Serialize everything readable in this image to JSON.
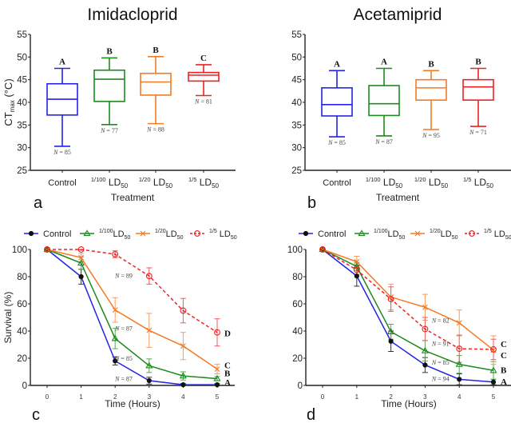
{
  "chart_data": [
    {
      "panel": "a",
      "type": "box",
      "title": "Imidacloprid",
      "xlabel": "Treatment",
      "ylabel": "CTmax (°C)",
      "ylabel_main": "CT",
      "ylabel_sub": "max",
      "ylabel_rest": " (°C)",
      "ylim": [
        25,
        55
      ],
      "yticks": [
        25,
        30,
        35,
        40,
        45,
        50,
        55
      ],
      "grid": false,
      "categories": [
        {
          "pre": "",
          "main": "Control",
          "sub": ""
        },
        {
          "pre": "1/100",
          "main": " LD",
          "sub": "50"
        },
        {
          "pre": "1/20",
          "main": " LD",
          "sub": "50"
        },
        {
          "pre": "1/5",
          "main": " LD",
          "sub": "50"
        }
      ],
      "boxes": [
        {
          "name": "Control",
          "color": "#2323e8",
          "min": 30.3,
          "q1": 37.2,
          "median": 40.7,
          "q3": 44.1,
          "max": 47.5,
          "n_label": "N = 85",
          "letter": "A"
        },
        {
          "name": "1/100 LD50",
          "color": "#1d8a1d",
          "min": 35.1,
          "q1": 40.2,
          "median": 45.1,
          "q3": 47.1,
          "max": 49.8,
          "n_label": "N = 77",
          "letter": "B"
        },
        {
          "name": "1/20 LD50",
          "color": "#f47a25",
          "min": 35.3,
          "q1": 41.6,
          "median": 44.5,
          "q3": 46.4,
          "max": 50.1,
          "n_label": "N = 88",
          "letter": "B"
        },
        {
          "name": "1/5 LD50",
          "color": "#ee2222",
          "min": 41.5,
          "q1": 44.7,
          "median": 46.0,
          "q3": 46.6,
          "max": 48.3,
          "n_label": "N = 81",
          "letter": "C"
        }
      ]
    },
    {
      "panel": "b",
      "type": "box",
      "title": "Acetamiprid",
      "xlabel": "Treatment",
      "ylabel": "",
      "ylim": [
        25,
        55
      ],
      "yticks": [
        25,
        30,
        35,
        40,
        45,
        50,
        55
      ],
      "grid": false,
      "categories": [
        {
          "pre": "",
          "main": "Control",
          "sub": ""
        },
        {
          "pre": "1/100",
          "main": " LD",
          "sub": "50"
        },
        {
          "pre": "1/20",
          "main": " LD",
          "sub": "50"
        },
        {
          "pre": "1/5",
          "main": " LD",
          "sub": "50"
        }
      ],
      "boxes": [
        {
          "name": "Control",
          "color": "#2323e8",
          "min": 32.4,
          "q1": 37.0,
          "median": 39.5,
          "q3": 43.2,
          "max": 47.0,
          "n_label": "N = 85",
          "letter": "A"
        },
        {
          "name": "1/100 LD50",
          "color": "#1d8a1d",
          "min": 32.6,
          "q1": 37.1,
          "median": 39.7,
          "q3": 43.7,
          "max": 47.5,
          "n_label": "N = 87",
          "letter": "A"
        },
        {
          "name": "1/20 LD50",
          "color": "#f47a25",
          "min": 34.0,
          "q1": 40.5,
          "median": 43.2,
          "q3": 45.0,
          "max": 47.0,
          "n_label": "N = 95",
          "letter": "B"
        },
        {
          "name": "1/5 LD50",
          "color": "#ee2222",
          "min": 34.7,
          "q1": 40.5,
          "median": 43.4,
          "q3": 45.0,
          "max": 47.5,
          "n_label": "N = 71",
          "letter": "B"
        }
      ]
    },
    {
      "panel": "c",
      "type": "line",
      "title": "",
      "xlabel": "Time (Hours)",
      "ylabel": "Survival (%)",
      "x": [
        0,
        1,
        2,
        3,
        4,
        5
      ],
      "xlim": [
        0,
        5
      ],
      "ylim": [
        0,
        100
      ],
      "yticks": [
        0,
        20,
        40,
        60,
        80,
        100
      ],
      "grid": false,
      "legend_position": "top",
      "series": [
        {
          "name": "Control",
          "legend_pre": "",
          "legend_main": "Control",
          "legend_sub": "",
          "color": "#2323e8",
          "marker": "filled-circle",
          "dashed": false,
          "values": [
            100,
            80,
            18,
            3.5,
            0.5,
            0.5
          ],
          "err": [
            0,
            5.5,
            3,
            2.5,
            0.8,
            0.8
          ]
        },
        {
          "name": "1/100 LD50",
          "legend_pre": "1/100",
          "legend_main": "LD",
          "legend_sub": "50",
          "color": "#1d8a1d",
          "marker": "triangle",
          "dashed": false,
          "values": [
            100,
            90,
            34.5,
            14.5,
            7,
            5
          ],
          "err": [
            0,
            4.5,
            7.5,
            5,
            3,
            1.5
          ]
        },
        {
          "name": "1/20 LD50",
          "legend_pre": "1/20",
          "legend_main": "LD",
          "legend_sub": "50",
          "color": "#f47a25",
          "marker": "x",
          "dashed": false,
          "values": [
            100,
            94,
            55.5,
            40.5,
            29,
            12
          ],
          "err": [
            0,
            3,
            9,
            12.5,
            10,
            3.5
          ]
        },
        {
          "name": "1/5 LD50",
          "legend_pre": "1/5",
          "legend_main": " LD",
          "legend_sub": "50",
          "color": "#ee2222",
          "marker": "open-circle",
          "dashed": true,
          "values": [
            100,
            100,
            96.5,
            80.5,
            55,
            39
          ],
          "err": [
            0,
            0.5,
            2.5,
            6,
            9,
            10
          ]
        }
      ],
      "annotations": [
        {
          "text": "N = 89",
          "x": 1.95,
          "y": 81
        },
        {
          "text": "N = 87",
          "x": 1.95,
          "y": 42
        },
        {
          "text": "N = 85",
          "x": 1.95,
          "y": 20
        },
        {
          "text": "N = 87",
          "x": 1.95,
          "y": 5
        }
      ],
      "end_letters": [
        {
          "text": "D",
          "y": 38.5
        },
        {
          "text": "C",
          "y": 15
        },
        {
          "text": "B",
          "y": 9
        },
        {
          "text": "A",
          "y": 2.5
        }
      ]
    },
    {
      "panel": "d",
      "type": "line",
      "title": "",
      "xlabel": "Time (Hours)",
      "ylabel": "",
      "x": [
        0,
        1,
        2,
        3,
        4,
        5
      ],
      "xlim": [
        0,
        5
      ],
      "ylim": [
        0,
        100
      ],
      "yticks": [
        0,
        20,
        40,
        60,
        80,
        100
      ],
      "grid": false,
      "legend_position": "top",
      "series": [
        {
          "name": "Control",
          "legend_pre": "",
          "legend_main": "Control",
          "legend_sub": "",
          "color": "#2323e8",
          "marker": "filled-circle",
          "dashed": false,
          "values": [
            100,
            80.5,
            32.5,
            15,
            4.5,
            2.5
          ],
          "err": [
            0,
            7.5,
            7.5,
            5.5,
            4,
            2
          ]
        },
        {
          "name": "1/100 LD50",
          "legend_pre": "1/100",
          "legend_main": "LD",
          "legend_sub": "50",
          "color": "#1d8a1d",
          "marker": "triangle",
          "dashed": false,
          "values": [
            100,
            87.5,
            39.5,
            25.5,
            15.5,
            11
          ],
          "err": [
            0,
            3,
            5.5,
            7.5,
            6.5,
            6.5
          ]
        },
        {
          "name": "1/20 LD50",
          "legend_pre": "1/20",
          "legend_main": "LD",
          "legend_sub": "50",
          "color": "#f47a25",
          "marker": "x",
          "dashed": false,
          "values": [
            100,
            91,
            65,
            57.5,
            46,
            26
          ],
          "err": [
            0,
            4,
            9.5,
            9.5,
            9.5,
            10.5
          ]
        },
        {
          "name": "1/5 LD50",
          "legend_pre": "1/5",
          "legend_main": " LD",
          "legend_sub": "50",
          "color": "#ee2222",
          "marker": "open-circle",
          "dashed": true,
          "values": [
            100,
            85,
            63.5,
            41.5,
            27,
            26.5
          ],
          "err": [
            0,
            3.5,
            9,
            8.5,
            10,
            7.5
          ]
        }
      ],
      "annotations": [
        {
          "text": "N = 82",
          "x": 3.15,
          "y": 48
        },
        {
          "text": "N = 91",
          "x": 3.15,
          "y": 31
        },
        {
          "text": "N = 85",
          "x": 3.15,
          "y": 17
        },
        {
          "text": "N = 94",
          "x": 3.15,
          "y": 5
        }
      ],
      "end_letters": [
        {
          "text": "C",
          "y": 30.5
        },
        {
          "text": "C",
          "y": 22.5
        },
        {
          "text": "B",
          "y": 11.5
        },
        {
          "text": "A",
          "y": 3
        }
      ]
    }
  ],
  "panel_labels": [
    "a",
    "b",
    "c",
    "d"
  ]
}
